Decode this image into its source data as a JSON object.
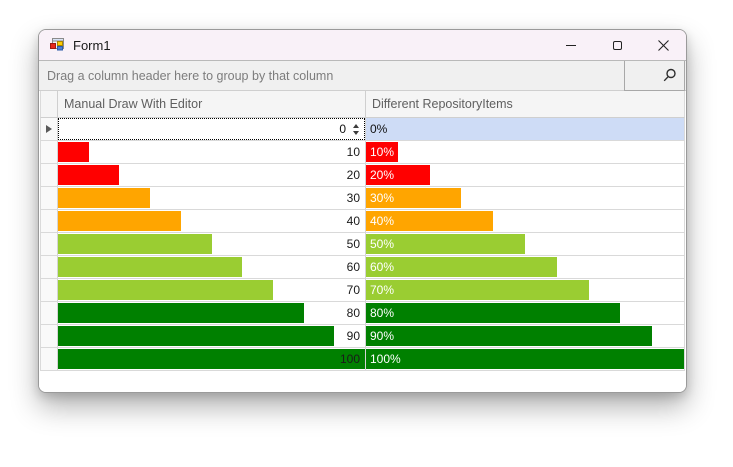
{
  "window": {
    "title": "Form1"
  },
  "grid": {
    "group_panel_text": "Drag a column header here to group by that column",
    "columns": [
      {
        "caption": "Manual Draw With Editor"
      },
      {
        "caption": "Different RepositoryItems"
      }
    ],
    "rows": [
      {
        "value": 0,
        "display": "0",
        "percent_label": "0%",
        "bar_color": null,
        "selected": true,
        "editor": "spin"
      },
      {
        "value": 10,
        "display": "10",
        "percent_label": "10%",
        "bar_color": "#ff0000",
        "selected": false
      },
      {
        "value": 20,
        "display": "20",
        "percent_label": "20%",
        "bar_color": "#ff0000",
        "selected": false
      },
      {
        "value": 30,
        "display": "30",
        "percent_label": "30%",
        "bar_color": "#ffa500",
        "selected": false
      },
      {
        "value": 40,
        "display": "40",
        "percent_label": "40%",
        "bar_color": "#ffa500",
        "selected": false
      },
      {
        "value": 50,
        "display": "50",
        "percent_label": "50%",
        "bar_color": "#9acd32",
        "selected": false
      },
      {
        "value": 60,
        "display": "60",
        "percent_label": "60%",
        "bar_color": "#9acd32",
        "selected": false
      },
      {
        "value": 70,
        "display": "70",
        "percent_label": "70%",
        "bar_color": "#9acd32",
        "selected": false
      },
      {
        "value": 80,
        "display": "80",
        "percent_label": "80%",
        "bar_color": "#008000",
        "selected": false
      },
      {
        "value": 90,
        "display": "90",
        "percent_label": "90%",
        "bar_color": "#008000",
        "selected": false
      },
      {
        "value": 100,
        "display": "100",
        "percent_label": "100%",
        "bar_color": "#008000",
        "selected": false
      }
    ],
    "colors": {
      "selection_bg": "#cedcf6",
      "red": "#ff0000",
      "orange": "#ffa500",
      "yellow_green": "#9acd32",
      "green": "#008000"
    }
  }
}
